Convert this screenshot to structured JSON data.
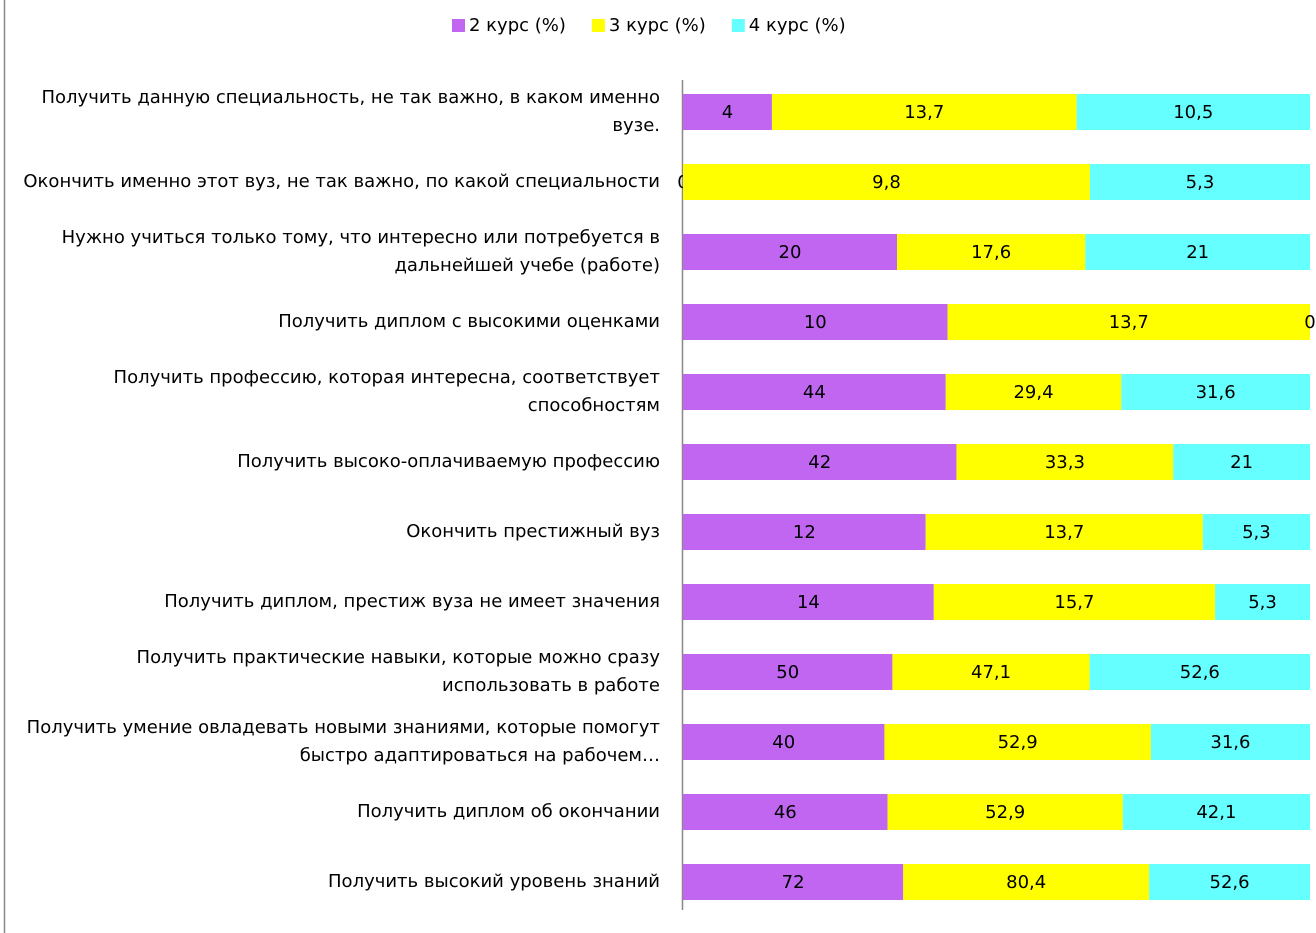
{
  "chart_data": {
    "type": "bar",
    "orientation": "horizontal",
    "stacking": "percent",
    "categories": [
      "Получить данную специальность, не так важно, в каком именно вузе.",
      "Окончить именно этот вуз, не так важно, по какой специальности",
      "Нужно учиться только тому, что интересно или потребуется в дальнейшей учебе (работе)",
      "Получить диплом с высокими оценками",
      "Получить профессию, которая интересна, соответствует способностям",
      "Получить высоко-оплачиваемую профессию",
      "Окончить престижный вуз",
      "Получить диплом, престиж вуза не имеет значения",
      "Получить практические навыки, которые можно сразу использовать в работе",
      "Получить умение овладевать новыми знаниями, которые помогут быстро адаптироваться на рабочем…",
      "Получить диплом об окончании",
      "Получить высокий уровень знаний"
    ],
    "series": [
      {
        "name": "2 курс (%)",
        "color": "#c066f0",
        "values": [
          4,
          0,
          20,
          10,
          44,
          42,
          12,
          14,
          50,
          40,
          46,
          72
        ],
        "value_labels": [
          "4",
          "0",
          "20",
          "10",
          "44",
          "42",
          "12",
          "14",
          "50",
          "40",
          "46",
          "72"
        ]
      },
      {
        "name": "3 курс (%)",
        "color": "#ffff00",
        "values": [
          13.7,
          9.8,
          17.6,
          13.7,
          29.4,
          33.3,
          13.7,
          15.7,
          47.1,
          52.9,
          52.9,
          80.4
        ],
        "value_labels": [
          "13,7",
          "9,8",
          "17,6",
          "13,7",
          "29,4",
          "33,3",
          "13,7",
          "15,7",
          "47,1",
          "52,9",
          "52,9",
          "80,4"
        ]
      },
      {
        "name": "4 курс (%)",
        "color": "#66ffff",
        "values": [
          10.5,
          5.3,
          21,
          0,
          31.6,
          21,
          5.3,
          5.3,
          52.6,
          31.6,
          42.1,
          52.6
        ],
        "value_labels": [
          "10,5",
          "5,3",
          "21",
          "0",
          "31,6",
          "21",
          "5,3",
          "5,3",
          "52,6",
          "31,6",
          "42,1",
          "52,6"
        ]
      }
    ],
    "legend": "top"
  }
}
